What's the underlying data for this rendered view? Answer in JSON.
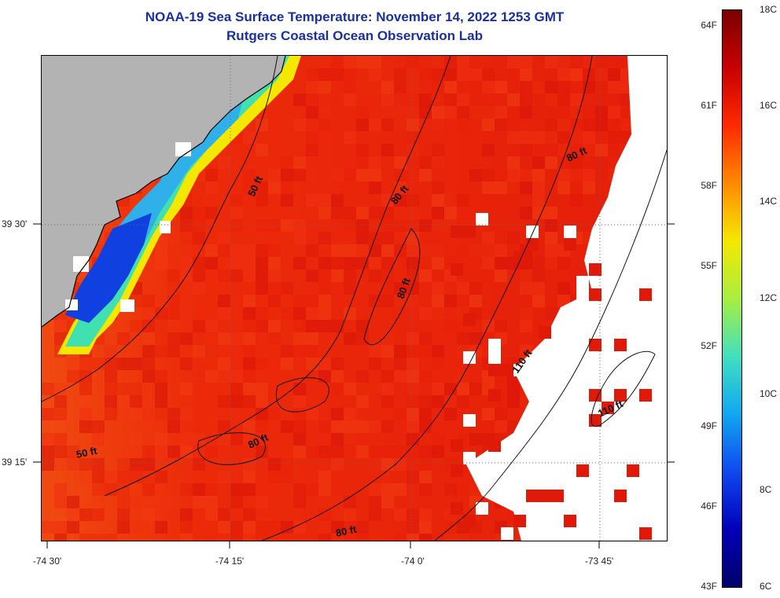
{
  "title": {
    "line1": "NOAA-19 Sea Surface Temperature:  November 14, 2022 1253 GMT",
    "line2": "Rutgers Coastal Ocean Observation Lab"
  },
  "map": {
    "longitude_labels": [
      "-74 30'",
      "-74 15'",
      "-74 0'",
      "-73 45'"
    ],
    "latitude_labels": [
      "39 30'",
      "39 15'"
    ],
    "contour_labels": [
      "50 ft",
      "80 ft",
      "80 ft",
      "80 ft",
      "110 ft",
      "110 ft",
      "80 ft",
      "50 ft",
      "80 ft"
    ],
    "colors": {
      "land": "#b3b3b3",
      "cloud_no_data": "#ffffff",
      "offshore_sst": "#e8200a",
      "nearshore_warm": "#f05010",
      "coastal_cool": "#30b0e8",
      "coldest_nearshore": "#1030d0"
    }
  },
  "colorbar": {
    "fahrenheit_labels": [
      "64F",
      "61F",
      "58F",
      "55F",
      "52F",
      "49F",
      "46F",
      "43F"
    ],
    "celsius_labels": [
      "18C",
      "16C",
      "14C",
      "12C",
      "10C",
      "8C",
      "6C"
    ],
    "gradient": [
      "#7a0000",
      "#c80000",
      "#ff2a00",
      "#ff8a00",
      "#f5e800",
      "#a8ee40",
      "#40e0c0",
      "#10a8f0",
      "#1048f0",
      "#0000b8",
      "#00006a"
    ]
  }
}
